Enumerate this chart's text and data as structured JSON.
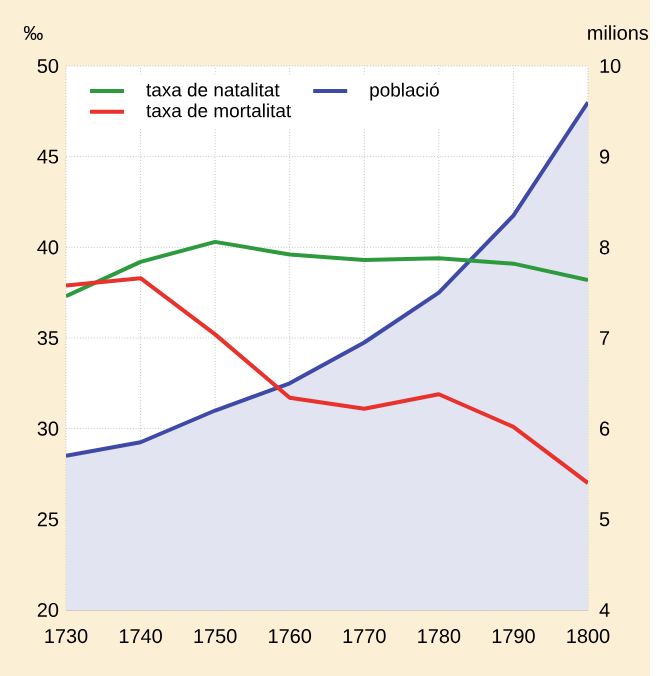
{
  "chart_data": {
    "type": "line",
    "xlabel": null,
    "ylabel": "‰",
    "y2label": "milions",
    "x": [
      1730,
      1740,
      1750,
      1760,
      1770,
      1780,
      1790,
      1800
    ],
    "series": [
      {
        "name": "taxa de natalitat",
        "color": "#2e9a3e",
        "values": [
          37.3,
          39.2,
          40.3,
          39.6,
          39.3,
          39.4,
          39.1,
          38.2
        ]
      },
      {
        "name": "taxa de mortalitat",
        "color": "#e8322b",
        "values": [
          37.9,
          38.3,
          35.2,
          31.7,
          31.1,
          31.9,
          30.1,
          27.0
        ]
      },
      {
        "name": "població",
        "color": "#3f4aa8",
        "type": "area",
        "axis": "y2",
        "values": [
          5.7,
          5.85,
          6.2,
          6.5,
          6.95,
          7.5,
          8.35,
          9.6
        ]
      }
    ],
    "xlim": [
      1730,
      1800
    ],
    "xticks": [
      1730,
      1740,
      1750,
      1760,
      1770,
      1780,
      1790,
      1800
    ],
    "ylim": [
      20,
      50
    ],
    "yticks": [
      20,
      25,
      30,
      35,
      40,
      45,
      50
    ],
    "y2lim": [
      4,
      10
    ],
    "y2ticks": [
      4,
      5,
      6,
      7,
      8,
      9,
      10
    ],
    "grid": true,
    "legend": "top left",
    "marker": "none",
    "line_style": "solid"
  }
}
